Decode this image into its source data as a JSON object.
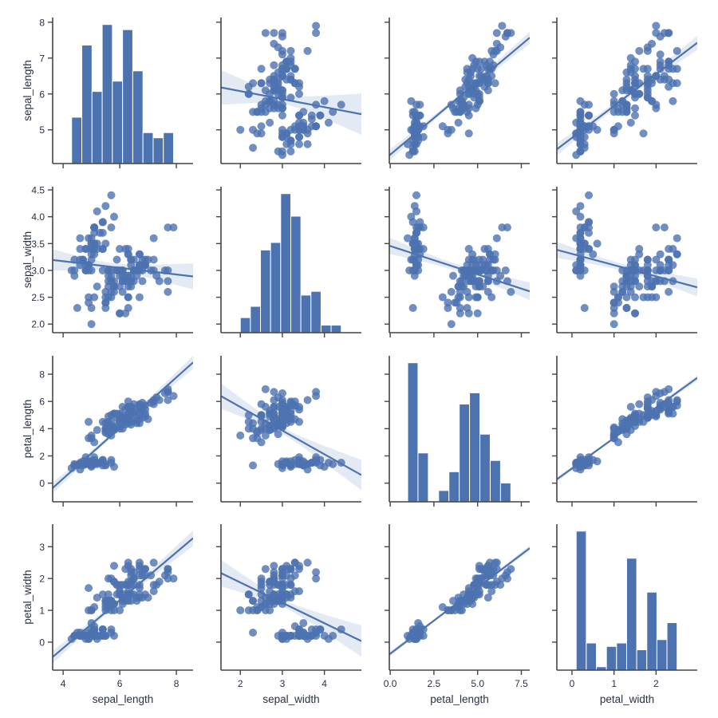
{
  "chart_data": {
    "type": "scatter",
    "kind": "pairplot",
    "diag_kind": "hist",
    "offdiag_kind": "reg",
    "hist_bins": 10,
    "grid": false,
    "colors": {
      "main": "#4c72b0",
      "band": "#4c72b0",
      "text": "#2a3142",
      "spine": "#444444"
    },
    "variables": [
      "sepal_length",
      "sepal_width",
      "petal_length",
      "petal_width"
    ],
    "axes": {
      "sepal_length": {
        "lim": [
          3.63,
          8.59
        ],
        "ticks": [
          4,
          6,
          8
        ],
        "tick_labels": [
          "4",
          "6",
          "8"
        ],
        "yticks": [
          5,
          6,
          7,
          8
        ],
        "ytick_labels": [
          "5",
          "6",
          "7",
          "8"
        ],
        "ylim": [
          4.06,
          8.13
        ]
      },
      "sepal_width": {
        "lim": [
          1.54,
          4.88
        ],
        "ticks": [
          2,
          3,
          4
        ],
        "tick_labels": [
          "2",
          "3",
          "4"
        ],
        "yticks": [
          2.0,
          2.5,
          3.0,
          3.5,
          4.0,
          4.5
        ],
        "ytick_labels": [
          "2.0",
          "2.5",
          "3.0",
          "3.5",
          "4.0",
          "4.5"
        ],
        "ylim": [
          1.84,
          4.56
        ]
      },
      "petal_length": {
        "lim": [
          -0.05,
          7.98
        ],
        "ticks": [
          0,
          2.5,
          5,
          7.5
        ],
        "tick_labels": [
          "0.0",
          "2.5",
          "5.0",
          "7.5"
        ],
        "yticks": [
          0,
          2,
          4,
          6,
          8
        ],
        "ytick_labels": [
          "0",
          "2",
          "4",
          "6",
          "8"
        ],
        "ylim": [
          -1.37,
          9.35
        ]
      },
      "petal_width": {
        "lim": [
          -0.36,
          2.98
        ],
        "ticks": [
          0,
          1,
          2
        ],
        "tick_labels": [
          "0",
          "1",
          "2"
        ],
        "yticks": [
          0,
          1,
          2,
          3
        ],
        "ytick_labels": [
          "0",
          "1",
          "2",
          "3"
        ],
        "ylim": [
          -0.88,
          3.71
        ]
      }
    },
    "rows": [
      [
        5.1,
        3.5,
        1.4,
        0.2
      ],
      [
        4.9,
        3.0,
        1.4,
        0.2
      ],
      [
        4.7,
        3.2,
        1.3,
        0.2
      ],
      [
        4.6,
        3.1,
        1.5,
        0.2
      ],
      [
        5.0,
        3.6,
        1.4,
        0.2
      ],
      [
        5.4,
        3.9,
        1.7,
        0.4
      ],
      [
        4.6,
        3.4,
        1.4,
        0.3
      ],
      [
        5.0,
        3.4,
        1.5,
        0.2
      ],
      [
        4.4,
        2.9,
        1.4,
        0.2
      ],
      [
        4.9,
        3.1,
        1.5,
        0.1
      ],
      [
        5.4,
        3.7,
        1.5,
        0.2
      ],
      [
        4.8,
        3.4,
        1.6,
        0.2
      ],
      [
        4.8,
        3.0,
        1.4,
        0.1
      ],
      [
        4.3,
        3.0,
        1.1,
        0.1
      ],
      [
        5.8,
        4.0,
        1.2,
        0.2
      ],
      [
        5.7,
        4.4,
        1.5,
        0.4
      ],
      [
        5.4,
        3.9,
        1.3,
        0.4
      ],
      [
        5.1,
        3.5,
        1.4,
        0.3
      ],
      [
        5.7,
        3.8,
        1.7,
        0.3
      ],
      [
        5.1,
        3.8,
        1.5,
        0.3
      ],
      [
        5.4,
        3.4,
        1.7,
        0.2
      ],
      [
        5.1,
        3.7,
        1.5,
        0.4
      ],
      [
        4.6,
        3.6,
        1.0,
        0.2
      ],
      [
        5.1,
        3.3,
        1.7,
        0.5
      ],
      [
        4.8,
        3.4,
        1.9,
        0.2
      ],
      [
        5.0,
        3.0,
        1.6,
        0.2
      ],
      [
        5.0,
        3.4,
        1.6,
        0.4
      ],
      [
        5.2,
        3.5,
        1.5,
        0.2
      ],
      [
        5.2,
        3.4,
        1.4,
        0.2
      ],
      [
        4.7,
        3.2,
        1.6,
        0.2
      ],
      [
        4.8,
        3.1,
        1.6,
        0.2
      ],
      [
        5.4,
        3.4,
        1.5,
        0.4
      ],
      [
        5.2,
        4.1,
        1.5,
        0.1
      ],
      [
        5.5,
        4.2,
        1.4,
        0.2
      ],
      [
        4.9,
        3.1,
        1.5,
        0.2
      ],
      [
        5.0,
        3.2,
        1.2,
        0.2
      ],
      [
        5.5,
        3.5,
        1.3,
        0.2
      ],
      [
        4.9,
        3.6,
        1.4,
        0.1
      ],
      [
        4.4,
        3.0,
        1.3,
        0.2
      ],
      [
        5.1,
        3.4,
        1.5,
        0.2
      ],
      [
        5.0,
        3.5,
        1.3,
        0.3
      ],
      [
        4.5,
        2.3,
        1.3,
        0.3
      ],
      [
        4.4,
        3.2,
        1.3,
        0.2
      ],
      [
        5.0,
        3.5,
        1.6,
        0.6
      ],
      [
        5.1,
        3.8,
        1.9,
        0.4
      ],
      [
        4.8,
        3.0,
        1.4,
        0.3
      ],
      [
        5.1,
        3.8,
        1.6,
        0.2
      ],
      [
        4.6,
        3.2,
        1.4,
        0.2
      ],
      [
        5.3,
        3.7,
        1.5,
        0.2
      ],
      [
        5.0,
        3.3,
        1.4,
        0.2
      ],
      [
        7.0,
        3.2,
        4.7,
        1.4
      ],
      [
        6.4,
        3.2,
        4.5,
        1.5
      ],
      [
        6.9,
        3.1,
        4.9,
        1.5
      ],
      [
        5.5,
        2.3,
        4.0,
        1.3
      ],
      [
        6.5,
        2.8,
        4.6,
        1.5
      ],
      [
        5.7,
        2.8,
        4.5,
        1.3
      ],
      [
        6.3,
        3.3,
        4.7,
        1.6
      ],
      [
        4.9,
        2.4,
        3.3,
        1.0
      ],
      [
        6.6,
        2.9,
        4.6,
        1.3
      ],
      [
        5.2,
        2.7,
        3.9,
        1.4
      ],
      [
        5.0,
        2.0,
        3.5,
        1.0
      ],
      [
        5.9,
        3.0,
        4.2,
        1.5
      ],
      [
        6.0,
        2.2,
        4.0,
        1.0
      ],
      [
        6.1,
        2.9,
        4.7,
        1.4
      ],
      [
        5.6,
        2.9,
        3.6,
        1.3
      ],
      [
        6.7,
        3.1,
        4.4,
        1.4
      ],
      [
        5.6,
        3.0,
        4.5,
        1.5
      ],
      [
        5.8,
        2.7,
        4.1,
        1.0
      ],
      [
        6.2,
        2.2,
        4.5,
        1.5
      ],
      [
        5.6,
        2.5,
        3.9,
        1.1
      ],
      [
        5.9,
        3.2,
        4.8,
        1.8
      ],
      [
        6.1,
        2.8,
        4.0,
        1.3
      ],
      [
        6.3,
        2.5,
        4.9,
        1.5
      ],
      [
        6.1,
        2.8,
        4.7,
        1.2
      ],
      [
        6.4,
        2.9,
        4.3,
        1.3
      ],
      [
        6.6,
        3.0,
        4.4,
        1.4
      ],
      [
        6.8,
        2.8,
        4.8,
        1.4
      ],
      [
        6.7,
        3.0,
        5.0,
        1.7
      ],
      [
        6.0,
        2.9,
        4.5,
        1.5
      ],
      [
        5.7,
        2.6,
        3.5,
        1.0
      ],
      [
        5.5,
        2.4,
        3.8,
        1.1
      ],
      [
        5.5,
        2.4,
        3.7,
        1.0
      ],
      [
        5.8,
        2.7,
        3.9,
        1.2
      ],
      [
        6.0,
        2.7,
        5.1,
        1.6
      ],
      [
        5.4,
        3.0,
        4.5,
        1.5
      ],
      [
        6.0,
        3.4,
        4.5,
        1.6
      ],
      [
        6.7,
        3.1,
        4.7,
        1.5
      ],
      [
        6.3,
        2.3,
        4.4,
        1.3
      ],
      [
        5.6,
        3.0,
        4.1,
        1.3
      ],
      [
        5.5,
        2.5,
        4.0,
        1.3
      ],
      [
        5.5,
        2.6,
        4.4,
        1.2
      ],
      [
        6.1,
        3.0,
        4.6,
        1.4
      ],
      [
        5.8,
        2.6,
        4.0,
        1.2
      ],
      [
        5.0,
        2.3,
        3.3,
        1.0
      ],
      [
        5.6,
        2.7,
        4.2,
        1.3
      ],
      [
        5.7,
        3.0,
        4.2,
        1.2
      ],
      [
        5.7,
        2.9,
        4.2,
        1.3
      ],
      [
        6.2,
        2.9,
        4.3,
        1.3
      ],
      [
        5.1,
        2.5,
        3.0,
        1.1
      ],
      [
        5.7,
        2.8,
        4.1,
        1.3
      ],
      [
        6.3,
        3.3,
        6.0,
        2.5
      ],
      [
        5.8,
        2.7,
        5.1,
        1.9
      ],
      [
        7.1,
        3.0,
        5.9,
        2.1
      ],
      [
        6.3,
        2.9,
        5.6,
        1.8
      ],
      [
        6.5,
        3.0,
        5.8,
        2.2
      ],
      [
        7.6,
        3.0,
        6.6,
        2.1
      ],
      [
        4.9,
        2.5,
        4.5,
        1.7
      ],
      [
        7.3,
        2.9,
        6.3,
        1.8
      ],
      [
        6.7,
        2.5,
        5.8,
        1.8
      ],
      [
        7.2,
        3.6,
        6.1,
        2.5
      ],
      [
        6.5,
        3.2,
        5.1,
        2.0
      ],
      [
        6.4,
        2.7,
        5.3,
        1.9
      ],
      [
        6.8,
        3.0,
        5.5,
        2.1
      ],
      [
        5.7,
        2.5,
        5.0,
        2.0
      ],
      [
        5.8,
        2.8,
        5.1,
        2.4
      ],
      [
        6.4,
        3.2,
        5.3,
        2.3
      ],
      [
        6.5,
        3.0,
        5.5,
        1.8
      ],
      [
        7.7,
        3.8,
        6.7,
        2.2
      ],
      [
        7.7,
        2.6,
        6.9,
        2.3
      ],
      [
        6.0,
        2.2,
        5.0,
        1.5
      ],
      [
        6.9,
        3.2,
        5.7,
        2.3
      ],
      [
        5.6,
        2.8,
        4.9,
        2.0
      ],
      [
        7.7,
        2.8,
        6.7,
        2.0
      ],
      [
        6.3,
        2.7,
        4.9,
        1.8
      ],
      [
        6.7,
        3.3,
        5.7,
        2.1
      ],
      [
        7.2,
        3.2,
        6.0,
        1.8
      ],
      [
        6.2,
        2.8,
        4.8,
        1.8
      ],
      [
        6.1,
        3.0,
        4.9,
        1.8
      ],
      [
        6.4,
        2.8,
        5.6,
        2.1
      ],
      [
        7.2,
        3.0,
        5.8,
        1.6
      ],
      [
        7.4,
        2.8,
        6.1,
        1.9
      ],
      [
        7.9,
        3.8,
        6.4,
        2.0
      ],
      [
        6.4,
        2.8,
        5.6,
        2.2
      ],
      [
        6.3,
        2.8,
        5.1,
        1.5
      ],
      [
        6.1,
        2.6,
        5.6,
        1.4
      ],
      [
        7.7,
        3.0,
        6.1,
        2.3
      ],
      [
        6.3,
        3.4,
        5.6,
        2.4
      ],
      [
        6.4,
        3.1,
        5.5,
        1.8
      ],
      [
        6.0,
        3.0,
        4.8,
        1.8
      ],
      [
        6.9,
        3.1,
        5.4,
        2.1
      ],
      [
        6.7,
        3.1,
        5.6,
        2.4
      ],
      [
        6.9,
        3.1,
        5.1,
        2.3
      ],
      [
        5.8,
        2.7,
        5.1,
        1.9
      ],
      [
        6.8,
        3.2,
        5.9,
        2.3
      ],
      [
        6.7,
        3.3,
        5.7,
        2.5
      ],
      [
        6.7,
        3.0,
        5.2,
        2.3
      ],
      [
        6.3,
        2.5,
        5.0,
        1.9
      ],
      [
        6.5,
        3.0,
        5.2,
        2.0
      ],
      [
        6.2,
        3.4,
        5.4,
        2.3
      ],
      [
        5.9,
        3.0,
        5.1,
        1.8
      ]
    ]
  }
}
